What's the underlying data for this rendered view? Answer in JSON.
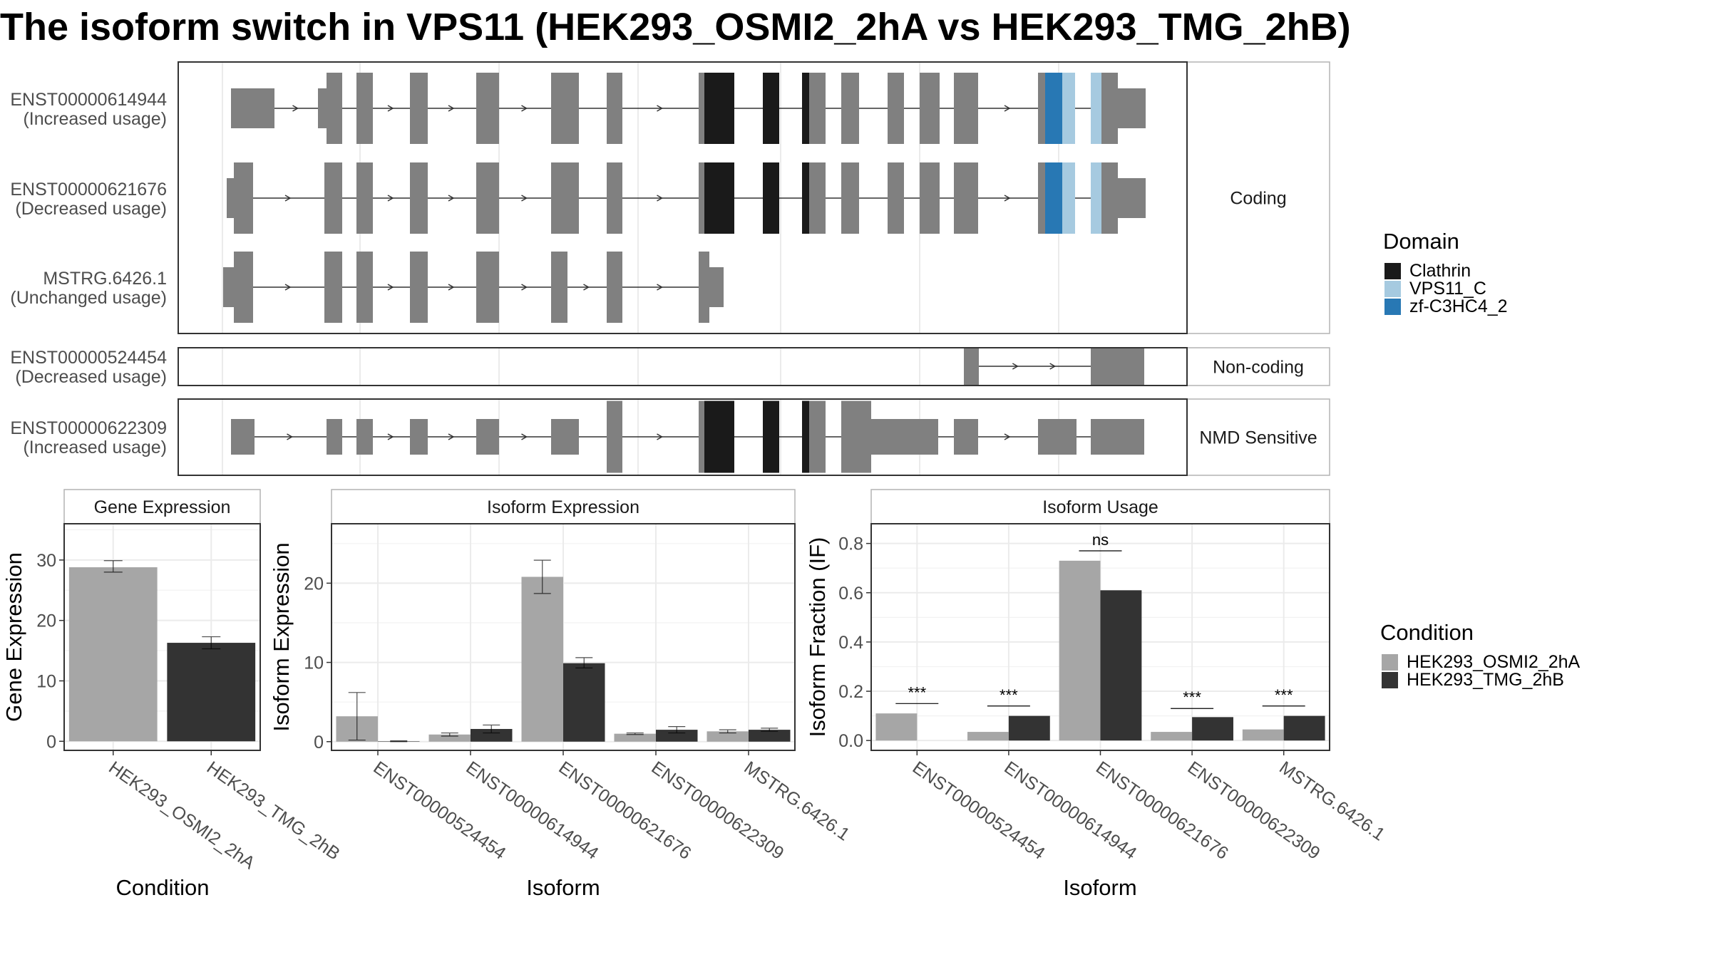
{
  "title": "The isoform switch in VPS11 (HEK293_OSMI2_2hA vs HEK293_TMG_2hB)",
  "chart_data": [
    {
      "type": "gene-structure",
      "facets": [
        "Coding",
        "Non-coding",
        "NMD Sensitive"
      ],
      "transcripts": [
        {
          "id": "ENST00000614944",
          "usage": "(Increased usage)",
          "facet": "Coding"
        },
        {
          "id": "ENST00000621676",
          "usage": "(Decreased usage)",
          "facet": "Coding"
        },
        {
          "id": "MSTRG.6426.1",
          "usage": "(Unchanged usage)",
          "facet": "Coding"
        },
        {
          "id": "ENST00000524454",
          "usage": "(Decreased usage)",
          "facet": "Non-coding"
        },
        {
          "id": "ENST00000622309",
          "usage": "(Increased usage)",
          "facet": "NMD Sensitive"
        }
      ],
      "legend": {
        "title": "Domain",
        "items": [
          {
            "label": "Clathrin",
            "color": "#1a1a1a"
          },
          {
            "label": "VPS11_C",
            "color": "#a6cae0"
          },
          {
            "label": "zf-C3HC4_2",
            "color": "#2878b4"
          }
        ]
      },
      "colors": {
        "exon": "#808080",
        "intron": "#333333"
      }
    },
    {
      "type": "bar",
      "title": "Gene Expression",
      "xlabel": "Condition",
      "ylabel": "Gene Expression",
      "categories": [
        "HEK293_OSMI2_2hA",
        "HEK293_TMG_2hB"
      ],
      "values": [
        28.8,
        16.3
      ],
      "errors": [
        [
          28.0,
          29.9
        ],
        [
          15.3,
          17.3
        ]
      ],
      "ylim": [
        -1.5,
        36
      ],
      "yticks": [
        0,
        10,
        20,
        30
      ],
      "colors": [
        "#a6a6a6",
        "#333333"
      ]
    },
    {
      "type": "bar",
      "title": "Isoform Expression",
      "xlabel": "Isoform",
      "ylabel": "Isoform Expression",
      "categories": [
        "ENST00000524454",
        "ENST00000614944",
        "ENST00000621676",
        "ENST00000622309",
        "MSTRG.6426.1"
      ],
      "series": [
        {
          "name": "HEK293_OSMI2_2hA",
          "values": [
            3.2,
            0.9,
            20.8,
            1.0,
            1.3
          ],
          "errors": [
            [
              0.2,
              6.2
            ],
            [
              0.7,
              1.1
            ],
            [
              18.7,
              22.9
            ],
            [
              0.9,
              1.1
            ],
            [
              1.1,
              1.5
            ]
          ]
        },
        {
          "name": "HEK293_TMG_2hB",
          "values": [
            0.05,
            1.6,
            9.9,
            1.5,
            1.5
          ],
          "errors": [
            [
              0.0,
              0.1
            ],
            [
              1.1,
              2.1
            ],
            [
              9.3,
              10.6
            ],
            [
              1.1,
              1.9
            ],
            [
              1.3,
              1.7
            ]
          ]
        }
      ],
      "ylim": [
        -1.1,
        27.5
      ],
      "yticks": [
        0,
        10,
        20
      ]
    },
    {
      "type": "bar",
      "title": "Isoform Usage",
      "xlabel": "Isoform",
      "ylabel": "Isoform Fraction (IF)",
      "categories": [
        "ENST00000524454",
        "ENST00000614944",
        "ENST00000621676",
        "ENST00000622309",
        "MSTRG.6426.1"
      ],
      "series": [
        {
          "name": "HEK293_OSMI2_2hA",
          "values": [
            0.11,
            0.035,
            0.73,
            0.035,
            0.045
          ]
        },
        {
          "name": "HEK293_TMG_2hB",
          "values": [
            0.0,
            0.1,
            0.61,
            0.095,
            0.1
          ]
        }
      ],
      "significance": [
        "***",
        "***",
        "ns",
        "***",
        "***"
      ],
      "significance_level": [
        0.15,
        0.14,
        0.77,
        0.13,
        0.14
      ],
      "ylim": [
        -0.04,
        0.88
      ],
      "yticks": [
        0.0,
        0.2,
        0.4,
        0.6,
        0.8
      ],
      "ytick_labels": [
        "0.0",
        "0.2",
        "0.4",
        "0.6",
        "0.8"
      ]
    }
  ],
  "condition_legend": {
    "title": "Condition",
    "items": [
      {
        "label": "HEK293_OSMI2_2hA",
        "color": "#a6a6a6"
      },
      {
        "label": "HEK293_TMG_2hB",
        "color": "#333333"
      }
    ]
  }
}
